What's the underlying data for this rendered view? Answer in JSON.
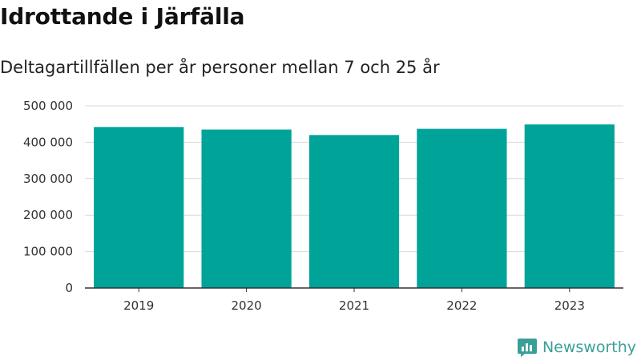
{
  "page": {
    "title": "Idrottande i Järfälla",
    "subtitle": "Deltagartillfällen per år personer mellan 7 och 25 år"
  },
  "chart_data": {
    "type": "bar",
    "title": "Idrottande i Järfälla",
    "subtitle": "Deltagartillfällen per år personer mellan 7 och 25 år",
    "xlabel": "",
    "ylabel": "",
    "categories": [
      "2019",
      "2020",
      "2021",
      "2022",
      "2023"
    ],
    "values": [
      442000,
      435000,
      420000,
      437000,
      449000
    ],
    "ylim": [
      0,
      500000
    ],
    "yticks": [
      0,
      100000,
      200000,
      300000,
      400000,
      500000
    ],
    "ytick_labels": [
      "0",
      "100 000",
      "200 000",
      "300 000",
      "400 000",
      "500 000"
    ],
    "grid": true,
    "legend": "none",
    "bar_color": "#00a398",
    "grid_color": "#d9d9d9",
    "axis_color": "#333333"
  },
  "brand": {
    "name": "Newsworthy",
    "icon": "newsworthy-logo-icon",
    "color": "#3a9f97"
  }
}
